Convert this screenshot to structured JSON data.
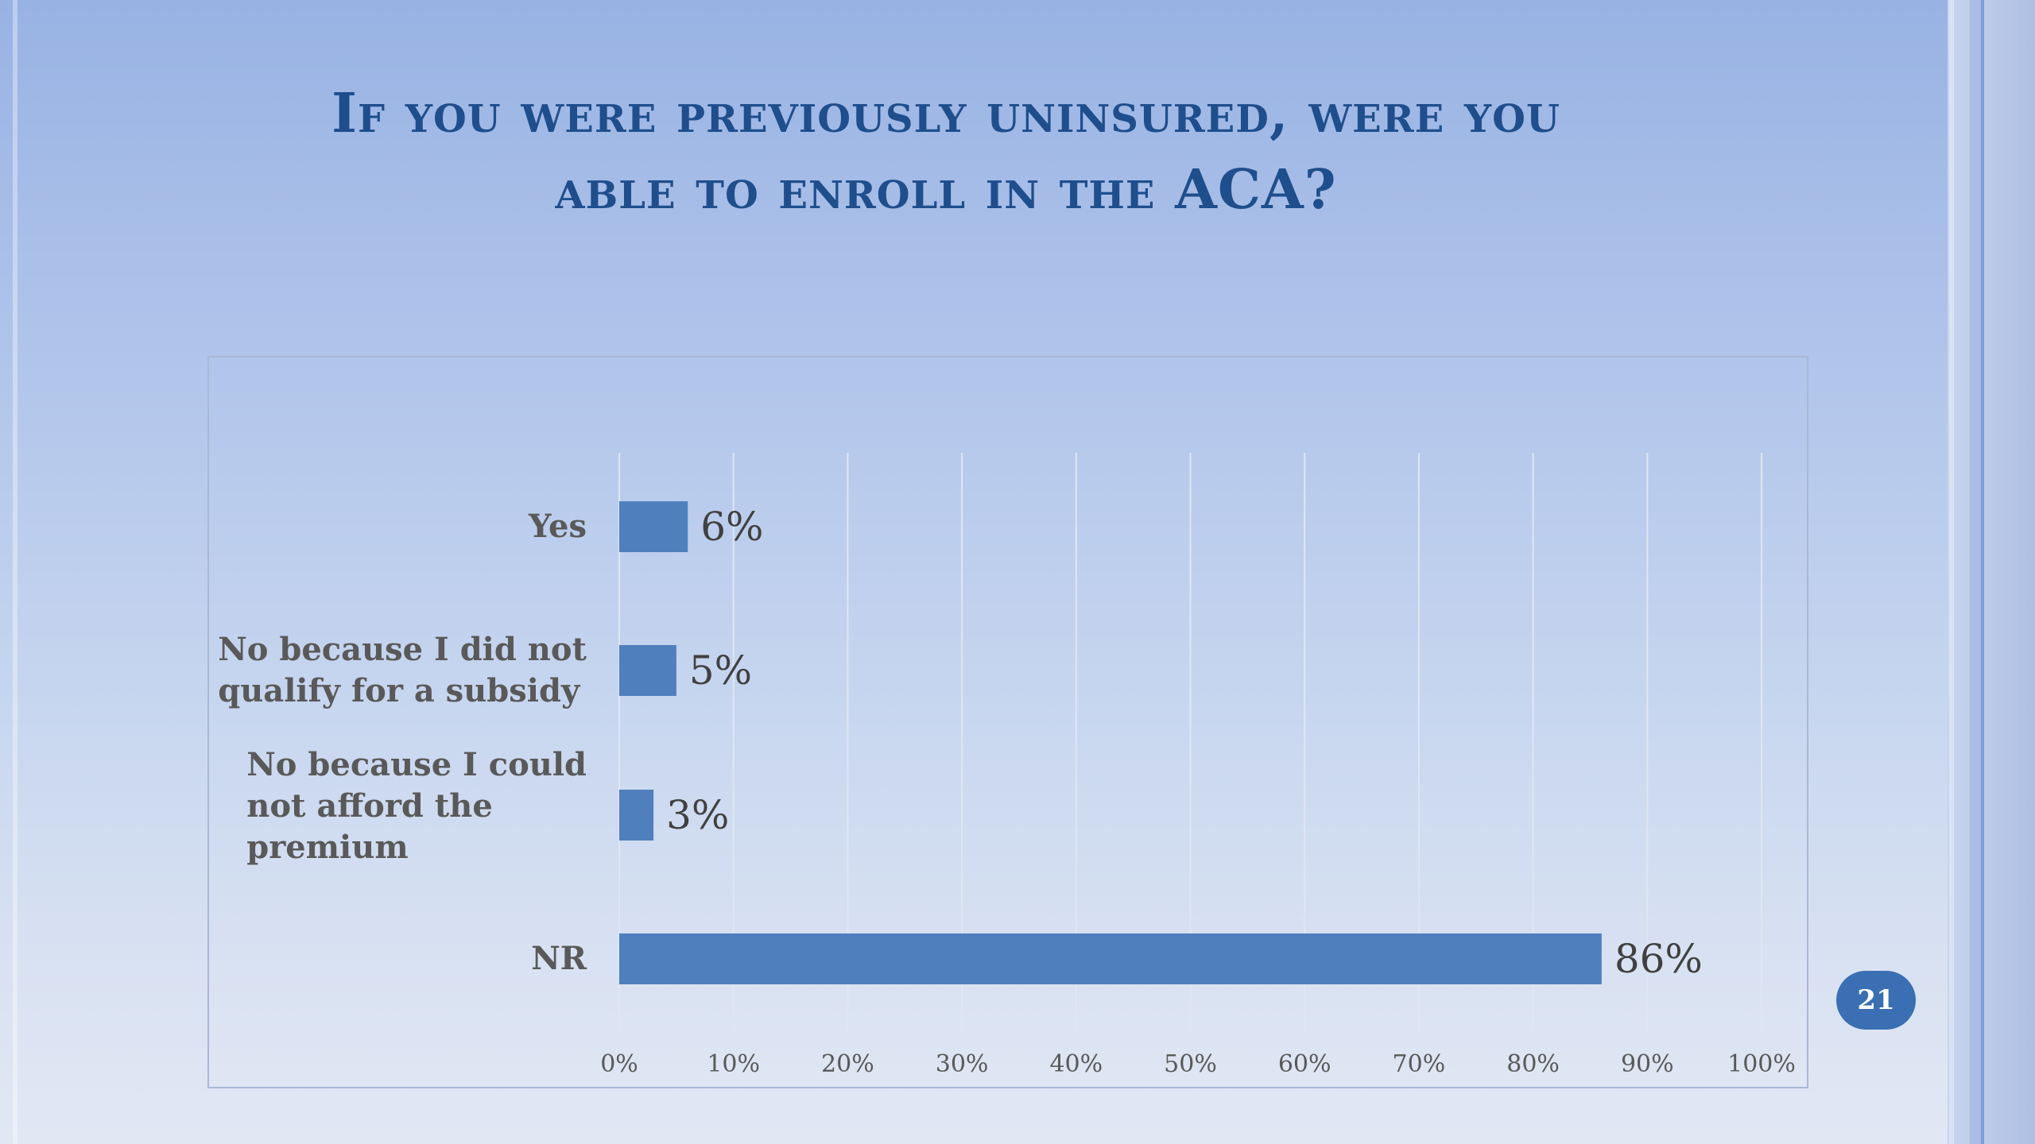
{
  "slide": {
    "title_line1": "If you were previously uninsured, were you",
    "title_line2": "able to enroll in the ACA?",
    "page_number": "21"
  },
  "colors": {
    "bar": "#4f7fbd",
    "title": "#1f4e8c",
    "badge": "#3a6fb3"
  },
  "chart_data": {
    "type": "bar",
    "orientation": "horizontal",
    "title": "",
    "xlabel": "",
    "ylabel": "",
    "categories": [
      [
        "Yes"
      ],
      [
        "No because I did not",
        "qualify for a subsidy"
      ],
      [
        "No because I could",
        "not afford the",
        "premium"
      ],
      [
        "NR"
      ]
    ],
    "values": [
      6,
      5,
      3,
      86
    ],
    "data_labels": [
      "6%",
      "5%",
      "3%",
      "86%"
    ],
    "xlim": [
      0,
      100
    ],
    "ticks": [
      0,
      10,
      20,
      30,
      40,
      50,
      60,
      70,
      80,
      90,
      100
    ],
    "tick_labels": [
      "0%",
      "10%",
      "20%",
      "30%",
      "40%",
      "50%",
      "60%",
      "70%",
      "80%",
      "90%",
      "100%"
    ],
    "grid": true,
    "legend": "none"
  }
}
